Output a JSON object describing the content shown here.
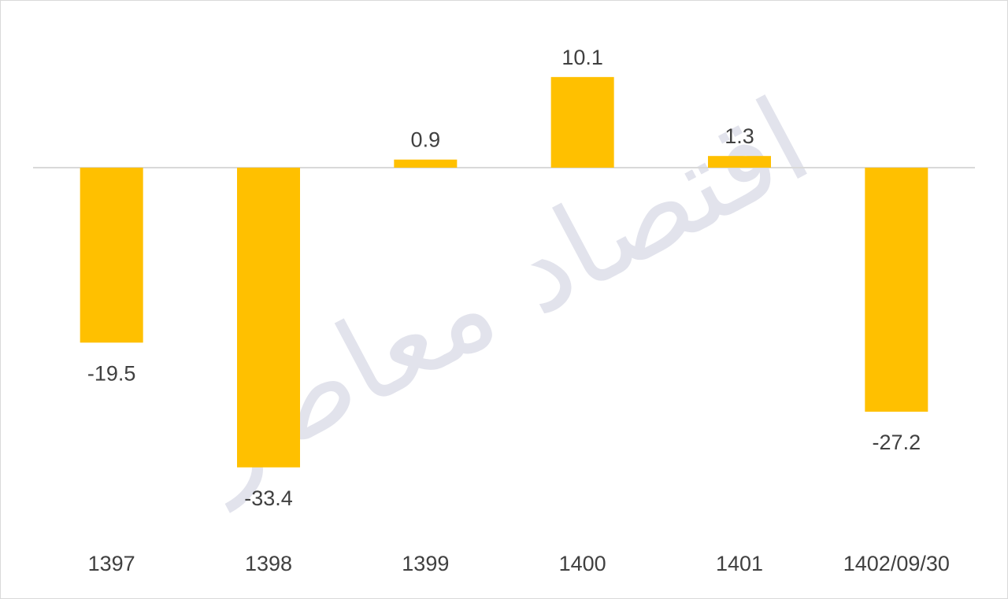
{
  "chart_data": {
    "type": "bar",
    "categories": [
      "1397",
      "1398",
      "1399",
      "1400",
      "1401",
      "1402/09/30"
    ],
    "values": [
      -19.5,
      -33.4,
      0.9,
      10.1,
      1.3,
      -27.2
    ],
    "data_labels": [
      "-19.5",
      "-33.4",
      "0.9",
      "10.1",
      "1.3",
      "-27.2"
    ],
    "ylim": [
      -33.4,
      10.1
    ],
    "grid": false,
    "legend": "none",
    "bar_color": "#ffc000",
    "axis_color": "#d9d9d9",
    "label_color": "#404040"
  },
  "watermark": {
    "text": "اقتصاد معاصر"
  }
}
